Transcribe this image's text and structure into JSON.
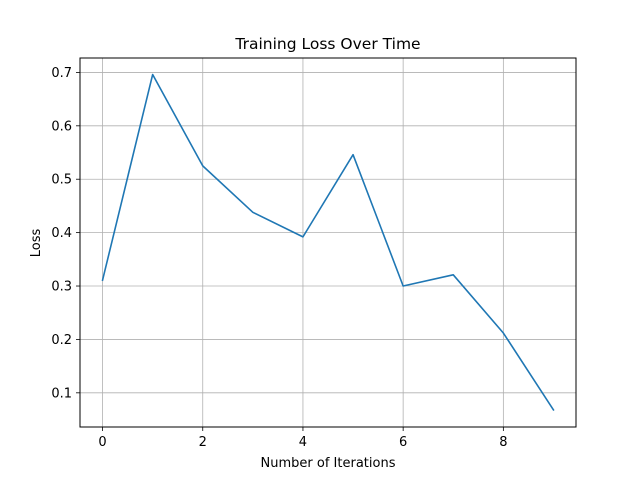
{
  "chart_data": {
    "type": "line",
    "title": "Training Loss Over Time",
    "xlabel": "Number of Iterations",
    "ylabel": "Loss",
    "xlim": [
      -0.45,
      9.45
    ],
    "ylim": [
      0.036,
      0.727
    ],
    "xticks": [
      0,
      2,
      4,
      6,
      8
    ],
    "yticks": [
      0.1,
      0.2,
      0.3,
      0.4,
      0.5,
      0.6,
      0.7
    ],
    "grid": true,
    "series": [
      {
        "color": "#1f77b4",
        "x": [
          0,
          1,
          2,
          3,
          4,
          5,
          6,
          7,
          8,
          9
        ],
        "y": [
          0.311,
          0.696,
          0.525,
          0.438,
          0.392,
          0.546,
          0.3,
          0.321,
          0.212,
          0.068
        ]
      }
    ]
  }
}
